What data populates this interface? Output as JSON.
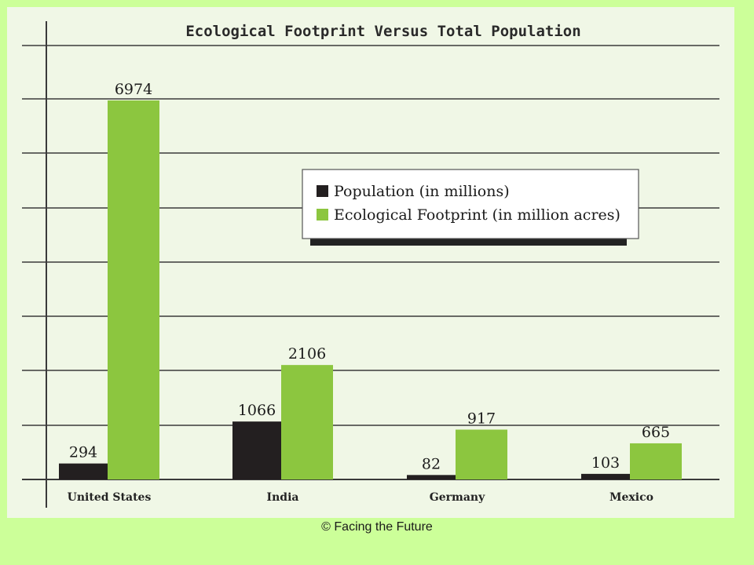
{
  "credit": "© Facing the Future",
  "colors": {
    "background": "#ccff99",
    "panel": "#f0f7e6",
    "population": "#231f20",
    "footprint": "#8cc63f",
    "gridline": "#3a3a3a"
  },
  "chart_data": {
    "type": "bar",
    "title": "Ecological Footprint Versus Total Population",
    "xlabel": "",
    "ylabel": "",
    "categories": [
      "United States",
      "India",
      "Germany",
      "Mexico"
    ],
    "series": [
      {
        "name": "Population (in millions)",
        "values": [
          294,
          1066,
          82,
          103
        ],
        "color": "#231f20"
      },
      {
        "name": "Ecological Footprint (in million acres)",
        "values": [
          6974,
          2106,
          917,
          665
        ],
        "color": "#8cc63f"
      }
    ],
    "ylim": [
      0,
      8000
    ],
    "grid": true,
    "legend": "center-right"
  }
}
